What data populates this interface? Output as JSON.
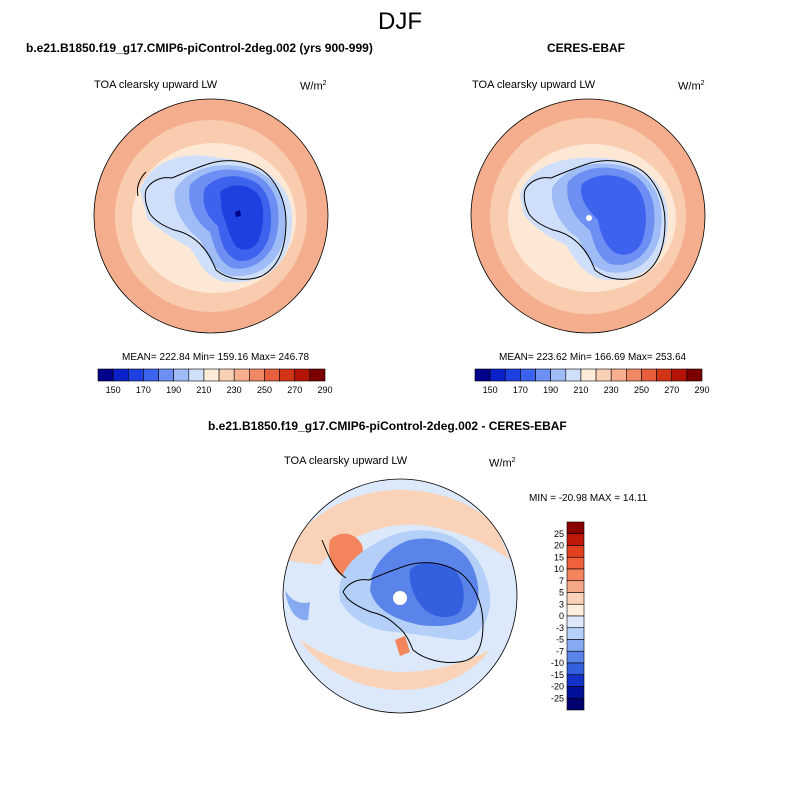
{
  "title": "DJF",
  "panels": [
    {
      "title": "b.e21.B1850.f19_g17.CMIP6-piControl-2deg.002 (yrs 900-999)",
      "subtitle": "TOA clearsky upward LW",
      "units": "W/m",
      "units_sup": "2",
      "stats": "MEAN= 222.84  Min= 159.16  Max= 246.78"
    },
    {
      "title": "CERES-EBAF",
      "subtitle": "TOA clearsky upward LW",
      "units": "W/m",
      "units_sup": "2",
      "stats": "MEAN= 223.62  Min= 166.69  Max= 253.64"
    },
    {
      "title": "b.e21.B1850.f19_g17.CMIP6-piControl-2deg.002 - CERES-EBAF",
      "subtitle": "TOA clearsky upward LW",
      "units": "W/m",
      "units_sup": "2",
      "stats": "MIN = -20.98 MAX =  14.11"
    }
  ],
  "colorbar_abs": {
    "labels": [
      "150",
      "170",
      "190",
      "210",
      "230",
      "250",
      "270",
      "290"
    ],
    "colors": [
      "#00008a",
      "#0a20c8",
      "#1f40e0",
      "#3c62ee",
      "#6d8ef3",
      "#9fbcf6",
      "#cfe0fa",
      "#fdecd8",
      "#f8d0b4",
      "#f6b090",
      "#f08866",
      "#e65e3c",
      "#d23418",
      "#b41406",
      "#7a0000"
    ]
  },
  "colorbar_diff": {
    "labels": [
      "25",
      "20",
      "15",
      "10",
      "7",
      "5",
      "3",
      "0",
      "-3",
      "-5",
      "-7",
      "-10",
      "-15",
      "-20",
      "-25"
    ],
    "colors": [
      "#8a0000",
      "#c01808",
      "#e0401e",
      "#f0603a",
      "#f4845c",
      "#f5a888",
      "#fad2b8",
      "#fdeede",
      "#dbe9fb",
      "#b4cff8",
      "#86aaf2",
      "#5a84ea",
      "#3460e0",
      "#1432c8",
      "#00109a",
      "#00006e"
    ]
  },
  "map_colors": {
    "outer": "#f4ae8e",
    "mid": "#f9ccb0",
    "pale": "#fde8d6",
    "light_blue": "#cfdffa",
    "blue1": "#9fbcf6",
    "blue2": "#6d8ef3",
    "blue3": "#3c62ee",
    "blue4": "#1f40e0",
    "diff_bg": "#dbe9fb",
    "diff_peach": "#fad2b8"
  }
}
